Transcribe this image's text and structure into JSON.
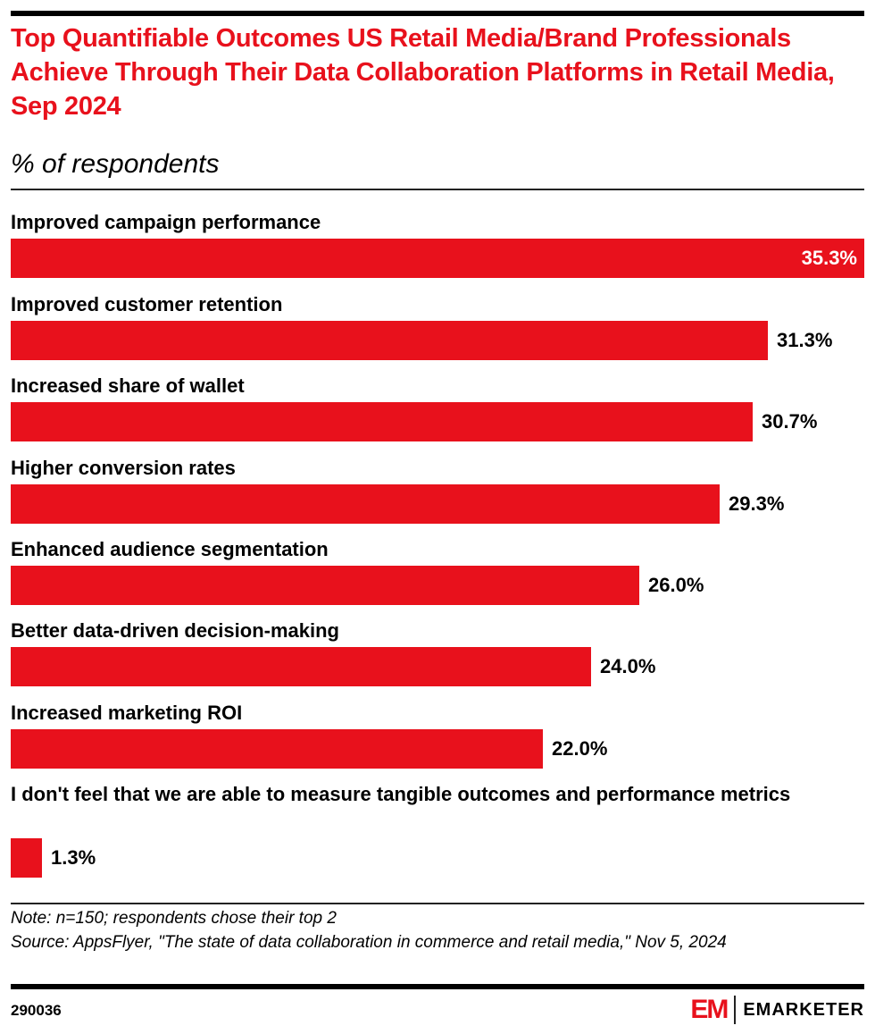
{
  "header": {
    "title": "Top Quantifiable Outcomes US Retail Media/Brand Professionals Achieve Through Their Data Collaboration Platforms in Retail Media, Sep 2024",
    "subtitle": "% of respondents"
  },
  "chart_data": {
    "type": "bar",
    "orientation": "horizontal",
    "title": "Top Quantifiable Outcomes US Retail Media/Brand Professionals Achieve Through Their Data Collaboration Platforms in Retail Media, Sep 2024",
    "subtitle": "% of respondents",
    "xlabel": "",
    "ylabel": "",
    "unit": "%",
    "grid": false,
    "legend": "none",
    "categories": [
      "Improved campaign performance",
      "Improved customer retention",
      "Increased share of wallet",
      "Higher conversion rates",
      "Enhanced audience segmentation",
      "Better data-driven decision-making",
      "Increased marketing ROI",
      "I don't feel that we are able to measure tangible outcomes and performance metrics"
    ],
    "values": [
      35.3,
      31.3,
      30.7,
      29.3,
      26.0,
      24.0,
      22.0,
      1.3
    ],
    "value_labels": [
      "35.3%",
      "31.3%",
      "30.7%",
      "29.3%",
      "26.0%",
      "24.0%",
      "22.0%",
      "1.3%"
    ],
    "xlim": [
      0,
      35.3
    ],
    "bar_color": "#e8111c"
  },
  "footer": {
    "note": "Note: n=150; respondents chose their top 2",
    "source": "Source: AppsFlyer, \"The state of data collaboration in commerce and retail media,\" Nov 5, 2024",
    "chart_id": "290036",
    "logo_mark": "EM",
    "logo_text": "EMARKETER"
  }
}
